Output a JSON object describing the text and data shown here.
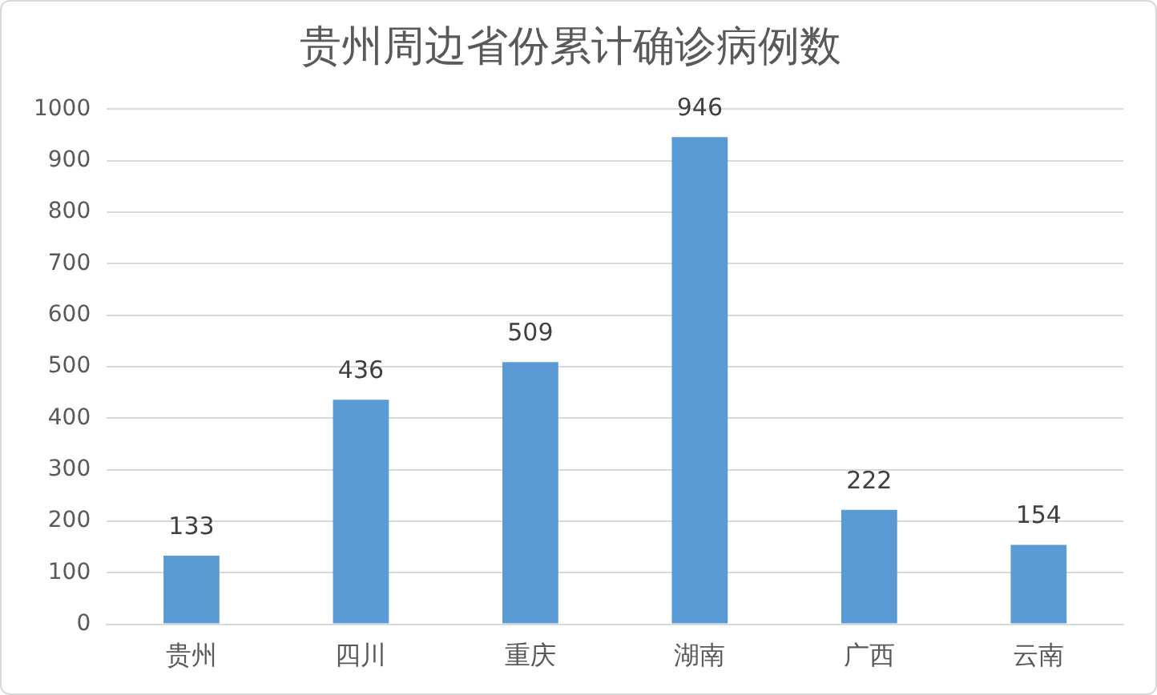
{
  "chart_data": {
    "type": "bar",
    "title": "贵州周边省份累计确诊病例数",
    "categories": [
      "贵州",
      "四川",
      "重庆",
      "湖南",
      "广西",
      "云南"
    ],
    "values": [
      133,
      436,
      509,
      946,
      222,
      154
    ],
    "color": "#5b9bd5",
    "ylim": [
      0,
      1000
    ],
    "yticks": [
      0,
      100,
      200,
      300,
      400,
      500,
      600,
      700,
      800,
      900,
      1000
    ],
    "grid": "y",
    "legend": false,
    "data_labels": true
  }
}
